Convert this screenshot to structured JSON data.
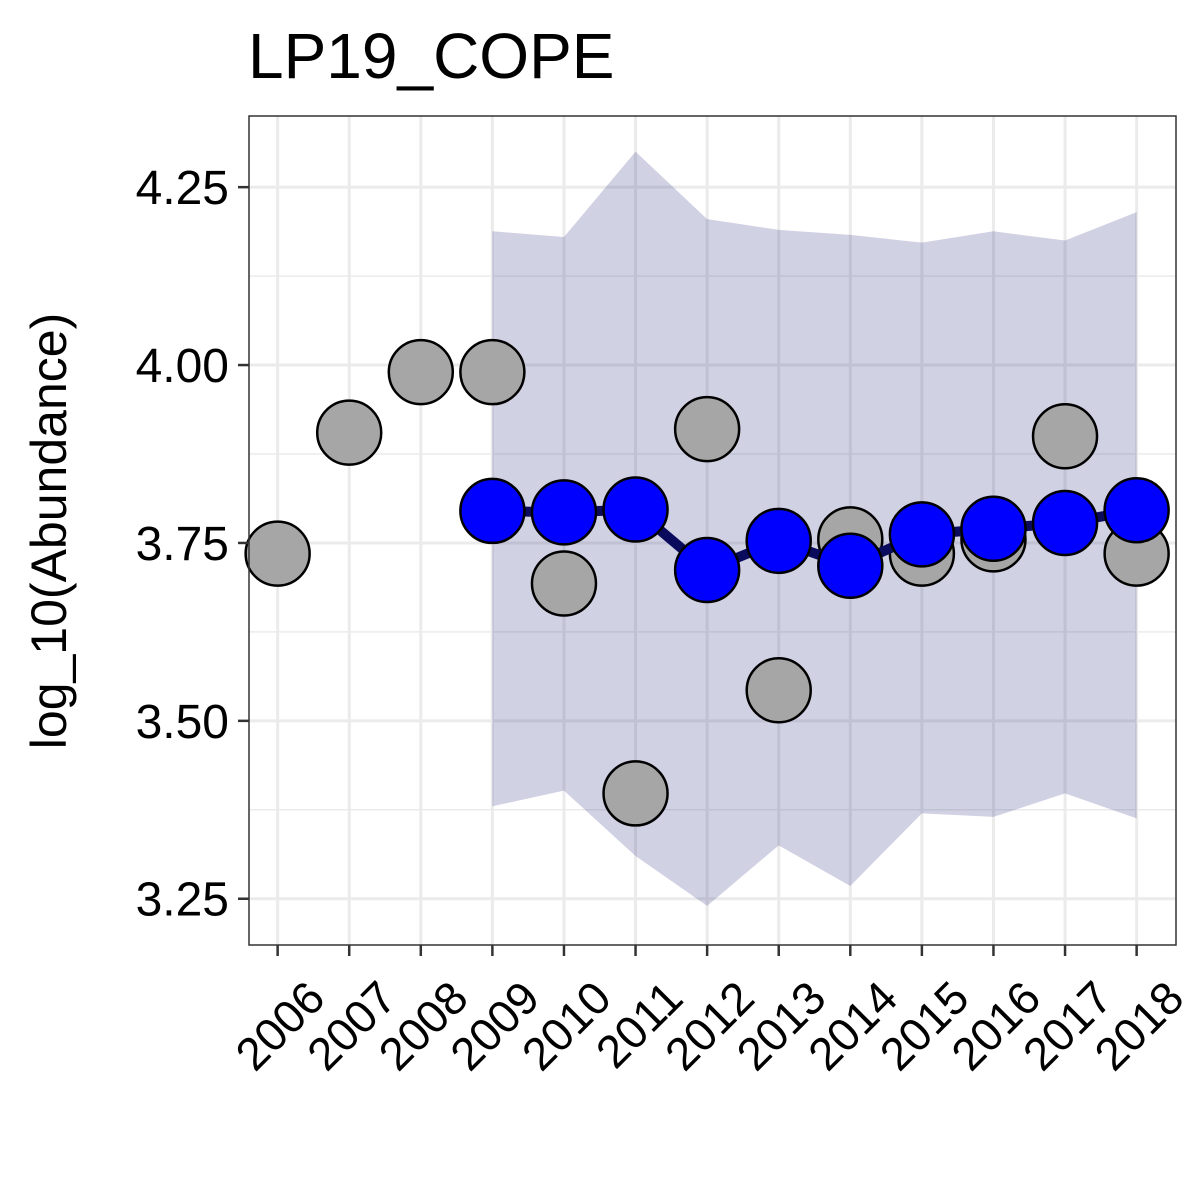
{
  "chart_data": {
    "type": "line",
    "title": "LP19_COPE",
    "xlabel": "",
    "ylabel": "log_10(Abundance)",
    "x": [
      2006,
      2007,
      2008,
      2009,
      2010,
      2011,
      2012,
      2013,
      2014,
      2015,
      2016,
      2017,
      2018
    ],
    "xlim": [
      2005.6,
      2018.55
    ],
    "ylim": [
      3.185,
      4.35
    ],
    "yticks": [
      "3.25",
      "3.50",
      "3.75",
      "4.00",
      "4.25"
    ],
    "grid": true,
    "legend": "none",
    "series": [
      {
        "role": "observed",
        "kind": "points",
        "color": "#a6a6a6",
        "x": [
          2006,
          2007,
          2008,
          2009,
          2010,
          2011,
          2012,
          2013,
          2014,
          2015,
          2016,
          2017,
          2018
        ],
        "values": [
          3.735,
          3.905,
          3.99,
          3.99,
          3.693,
          3.398,
          3.91,
          3.543,
          3.755,
          3.735,
          3.755,
          3.9,
          3.735
        ]
      },
      {
        "role": "fitted",
        "kind": "line+points",
        "color": "#0000ff",
        "line_color": "#0b0b5e",
        "x": [
          2009,
          2010,
          2011,
          2012,
          2013,
          2014,
          2015,
          2016,
          2017,
          2018
        ],
        "values": [
          3.795,
          3.793,
          3.797,
          3.712,
          3.753,
          3.718,
          3.762,
          3.77,
          3.778,
          3.796
        ]
      },
      {
        "role": "interval",
        "kind": "band",
        "color": "#1a1a7a",
        "x": [
          2009,
          2010,
          2011,
          2012,
          2013,
          2014,
          2015,
          2016,
          2017,
          2018
        ],
        "upper": [
          4.188,
          4.18,
          4.3,
          4.205,
          4.19,
          4.183,
          4.172,
          4.188,
          4.175,
          4.215
        ],
        "lower": [
          3.38,
          3.402,
          3.31,
          3.24,
          3.325,
          3.268,
          3.37,
          3.365,
          3.398,
          3.363
        ]
      }
    ]
  }
}
